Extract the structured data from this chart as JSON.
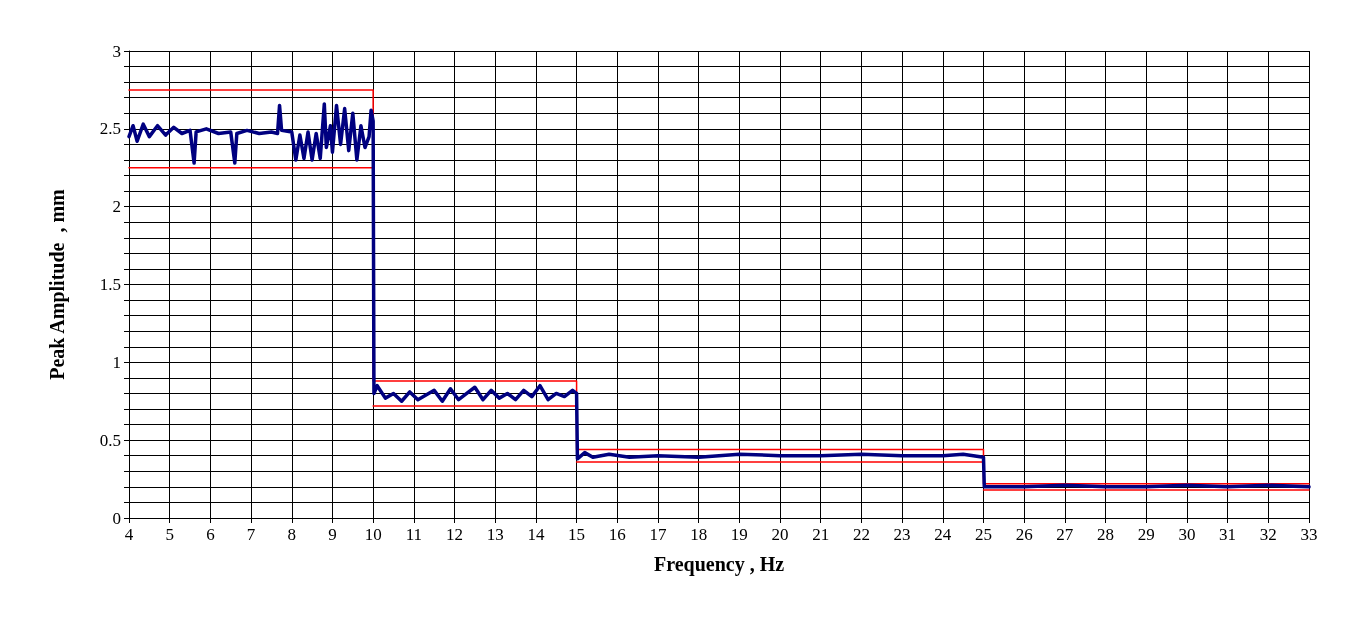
{
  "chart_data": {
    "type": "line",
    "xlabel": "Frequency , Hz",
    "ylabel": "Peak Amplitude  , mm",
    "xlim": [
      4,
      33
    ],
    "xticks": [
      4,
      5,
      6,
      7,
      8,
      9,
      10,
      11,
      12,
      13,
      14,
      15,
      16,
      17,
      18,
      19,
      20,
      21,
      22,
      23,
      24,
      25,
      26,
      27,
      28,
      29,
      30,
      31,
      32,
      33
    ],
    "ylim": [
      0,
      3
    ],
    "yticks": [
      0,
      {
        "value": 0.1,
        "label": null
      },
      {
        "value": 0.2,
        "label": null
      },
      {
        "value": 0.3,
        "label": null
      },
      {
        "value": 0.4,
        "label": null
      },
      0.5,
      {
        "value": 0.6,
        "label": null
      },
      {
        "value": 0.7,
        "label": null
      },
      {
        "value": 0.8,
        "label": null
      },
      {
        "value": 0.9,
        "label": null
      },
      1,
      {
        "value": 1.1,
        "label": null
      },
      {
        "value": 1.2,
        "label": null
      },
      {
        "value": 1.3,
        "label": null
      },
      {
        "value": 1.4,
        "label": null
      },
      1.5,
      {
        "value": 1.6,
        "label": null
      },
      {
        "value": 1.7,
        "label": null
      },
      {
        "value": 1.8,
        "label": null
      },
      {
        "value": 1.9,
        "label": null
      },
      2,
      {
        "value": 2.1,
        "label": null
      },
      {
        "value": 2.2,
        "label": null
      },
      {
        "value": 2.3,
        "label": null
      },
      {
        "value": 2.4,
        "label": null
      },
      2.5,
      {
        "value": 2.6,
        "label": null
      },
      {
        "value": 2.7,
        "label": null
      },
      {
        "value": 2.8,
        "label": null
      },
      {
        "value": 2.9,
        "label": null
      },
      3
    ],
    "grid": true,
    "marker": "none",
    "series": [
      {
        "color": "#ff0000",
        "x": [
          4,
          10,
          10,
          15,
          15,
          25,
          25,
          33
        ],
        "values": [
          2.75,
          2.75,
          0.88,
          0.88,
          0.44,
          0.44,
          0.22,
          0.22
        ]
      },
      {
        "color": "#ff0000",
        "x": [
          4,
          10
        ],
        "values": [
          2.25,
          2.25
        ]
      },
      {
        "color": "#ff0000",
        "x": [
          10,
          15
        ],
        "values": [
          0.72,
          0.72
        ]
      },
      {
        "color": "#ff0000",
        "x": [
          15,
          25
        ],
        "values": [
          0.36,
          0.36
        ]
      },
      {
        "color": "#ff0000",
        "x": [
          25,
          33
        ],
        "values": [
          0.18,
          0.18
        ]
      },
      {
        "color": "#000080",
        "x": [
          4.0,
          4.1,
          4.2,
          4.35,
          4.5,
          4.7,
          4.9,
          5.1,
          5.3,
          5.5,
          5.6,
          5.65,
          5.9,
          6.2,
          6.5,
          6.6,
          6.65,
          6.9,
          7.2,
          7.5,
          7.65,
          7.7,
          7.75,
          8.0,
          8.1,
          8.2,
          8.3,
          8.4,
          8.5,
          8.6,
          8.7,
          8.8,
          8.85,
          8.95,
          9.0,
          9.1,
          9.2,
          9.3,
          9.4,
          9.5,
          9.6,
          9.7,
          9.8,
          9.9,
          9.95,
          10.0,
          10.02,
          10.1,
          10.3,
          10.5,
          10.7,
          10.9,
          11.1,
          11.3,
          11.5,
          11.7,
          11.9,
          12.1,
          12.3,
          12.5,
          12.7,
          12.9,
          13.1,
          13.3,
          13.5,
          13.7,
          13.9,
          14.1,
          14.3,
          14.5,
          14.7,
          14.9,
          15.0,
          15.02,
          15.2,
          15.4,
          15.8,
          16.3,
          17,
          18,
          19,
          20,
          21,
          22,
          23,
          24,
          24.5,
          25.0,
          25.02,
          26,
          27,
          28,
          29,
          30,
          31,
          32,
          33
        ],
        "values": [
          2.45,
          2.52,
          2.42,
          2.53,
          2.45,
          2.52,
          2.46,
          2.51,
          2.47,
          2.49,
          2.28,
          2.48,
          2.5,
          2.47,
          2.48,
          2.28,
          2.47,
          2.49,
          2.47,
          2.48,
          2.47,
          2.65,
          2.49,
          2.48,
          2.3,
          2.46,
          2.31,
          2.48,
          2.3,
          2.47,
          2.31,
          2.66,
          2.38,
          2.52,
          2.35,
          2.65,
          2.4,
          2.63,
          2.36,
          2.6,
          2.3,
          2.52,
          2.38,
          2.45,
          2.62,
          2.55,
          0.8,
          0.85,
          0.77,
          0.8,
          0.75,
          0.81,
          0.76,
          0.79,
          0.82,
          0.75,
          0.83,
          0.76,
          0.8,
          0.84,
          0.76,
          0.82,
          0.77,
          0.8,
          0.76,
          0.82,
          0.78,
          0.85,
          0.76,
          0.8,
          0.78,
          0.82,
          0.8,
          0.38,
          0.42,
          0.39,
          0.41,
          0.39,
          0.4,
          0.39,
          0.41,
          0.4,
          0.4,
          0.41,
          0.4,
          0.4,
          0.41,
          0.39,
          0.2,
          0.2,
          0.21,
          0.2,
          0.2,
          0.21,
          0.2,
          0.21,
          0.2
        ]
      }
    ]
  }
}
